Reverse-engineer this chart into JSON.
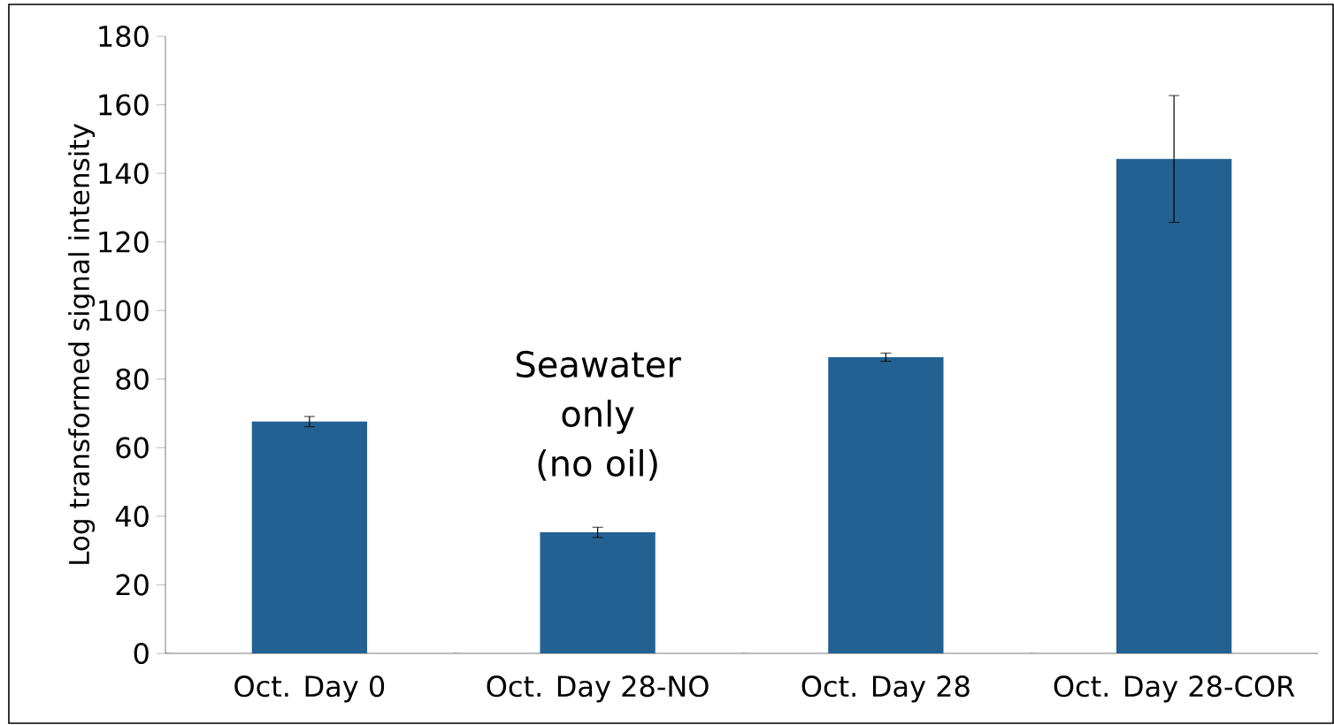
{
  "chart_data": {
    "type": "bar",
    "ylabel": "Log transformed signal intensity",
    "categories": [
      "Oct. Day 0",
      "Oct. Day 28-NO",
      "Oct. Day 28",
      "Oct. Day 28-COR"
    ],
    "values": [
      67.6,
      35.3,
      86.4,
      144.2
    ],
    "errors": [
      1.5,
      1.5,
      1.2,
      18.5
    ],
    "color": "#236192",
    "ylim": [
      0,
      180
    ],
    "yticks": [
      0,
      20,
      40,
      60,
      80,
      100,
      120,
      140,
      160,
      180
    ],
    "grid": false,
    "annotations": [
      "Seawater only (no oil)"
    ]
  }
}
